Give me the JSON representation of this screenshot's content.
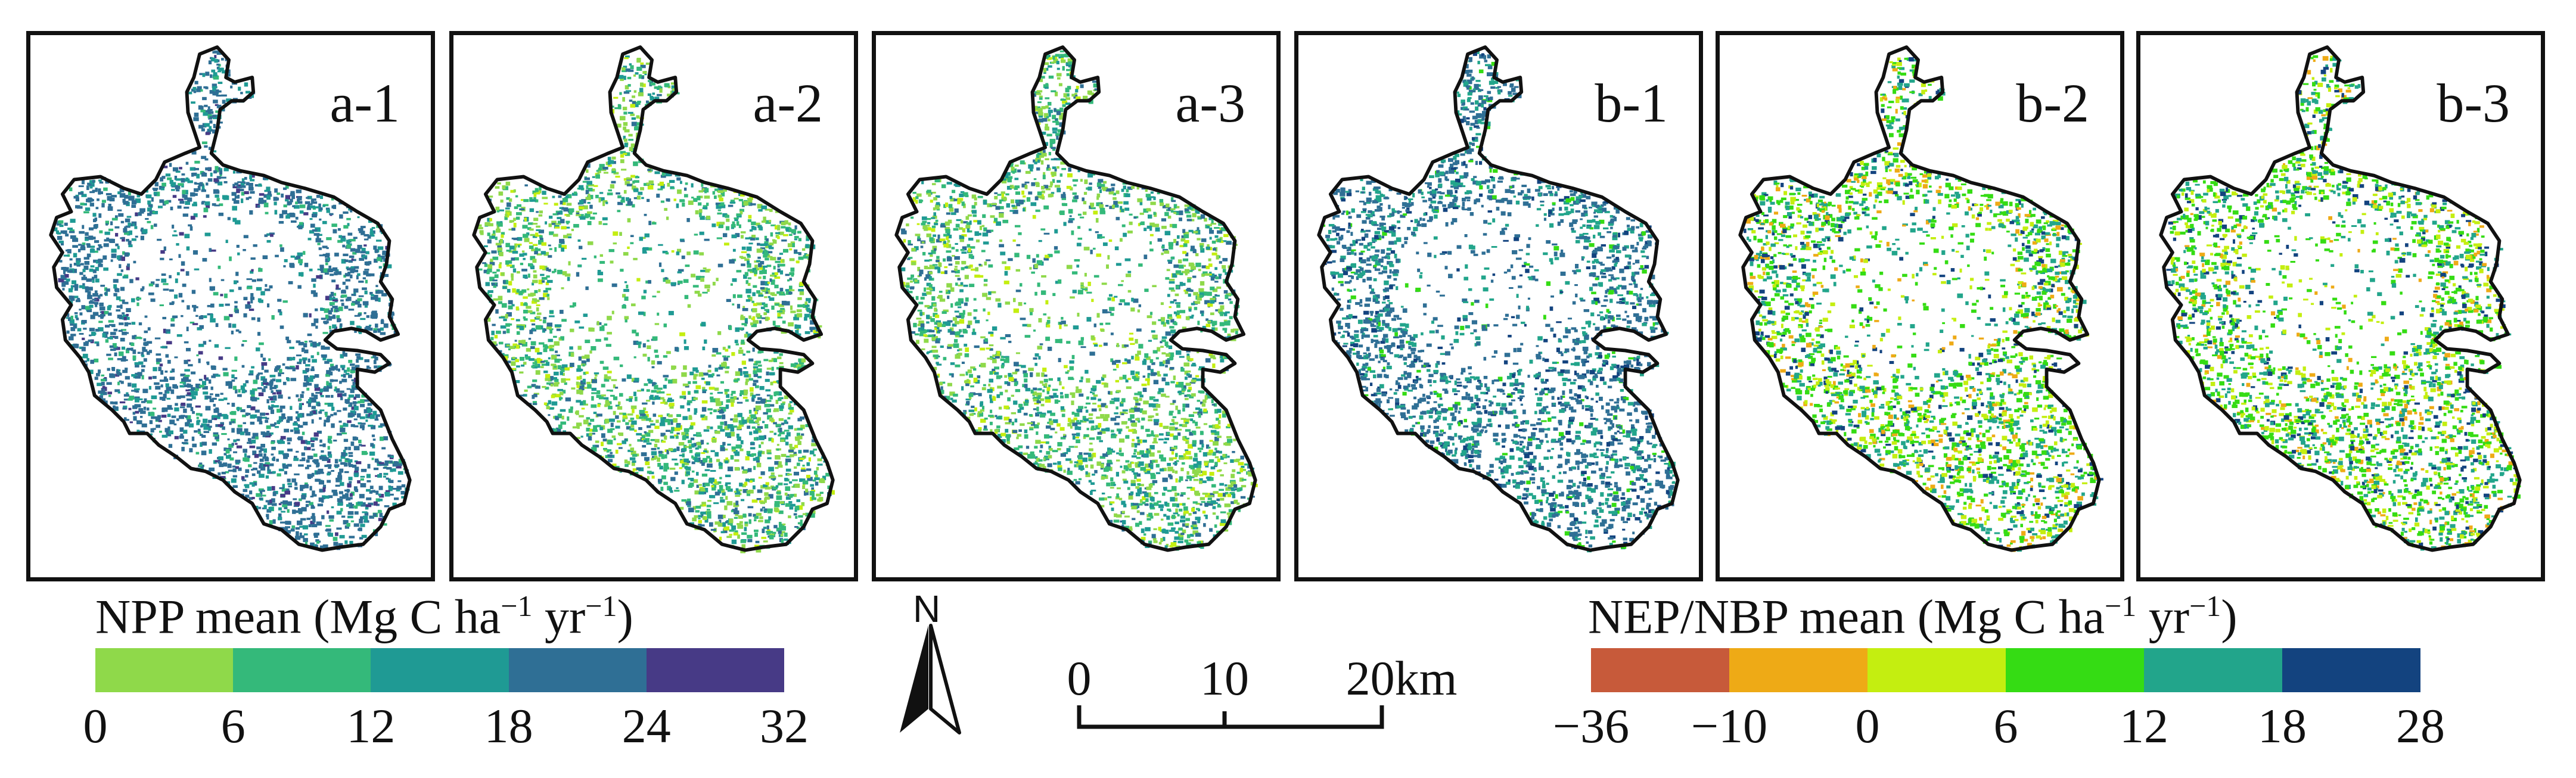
{
  "panels": [
    {
      "label": "a-1",
      "style": "npp-blue"
    },
    {
      "label": "a-2",
      "style": "npp-mixed"
    },
    {
      "label": "a-3",
      "style": "npp-mixed"
    },
    {
      "label": "b-1",
      "style": "nep-blue"
    },
    {
      "label": "b-2",
      "style": "nep-mixed"
    },
    {
      "label": "b-3",
      "style": "nep-mixed"
    }
  ],
  "npp_legend": {
    "title": "NPP mean (Mg C ha",
    "title_sup1": "−1",
    "title_mid": " yr",
    "title_sup2": "−1",
    "title_end": ")",
    "ticks": [
      "0",
      "6",
      "12",
      "18",
      "24",
      "32"
    ],
    "colors": [
      "#8fd94a",
      "#34b97a",
      "#1f9a94",
      "#2f6f95",
      "#473a86"
    ]
  },
  "nep_legend": {
    "title": "NEP/NBP mean (Mg C ha",
    "title_sup1": "−1",
    "title_mid": " yr",
    "title_sup2": "−1",
    "title_end": ")",
    "ticks": [
      "−36",
      "−10",
      "0",
      "6",
      "12",
      "18",
      "28"
    ],
    "colors": [
      "#c75a3a",
      "#eeaa16",
      "#c4ee10",
      "#35dc14",
      "#22a58b",
      "#13437f"
    ]
  },
  "north_arrow": {
    "letter": "N",
    "icon": "north-arrow-icon"
  },
  "scale_bar": {
    "labels": [
      "0",
      "10",
      "20km"
    ]
  }
}
